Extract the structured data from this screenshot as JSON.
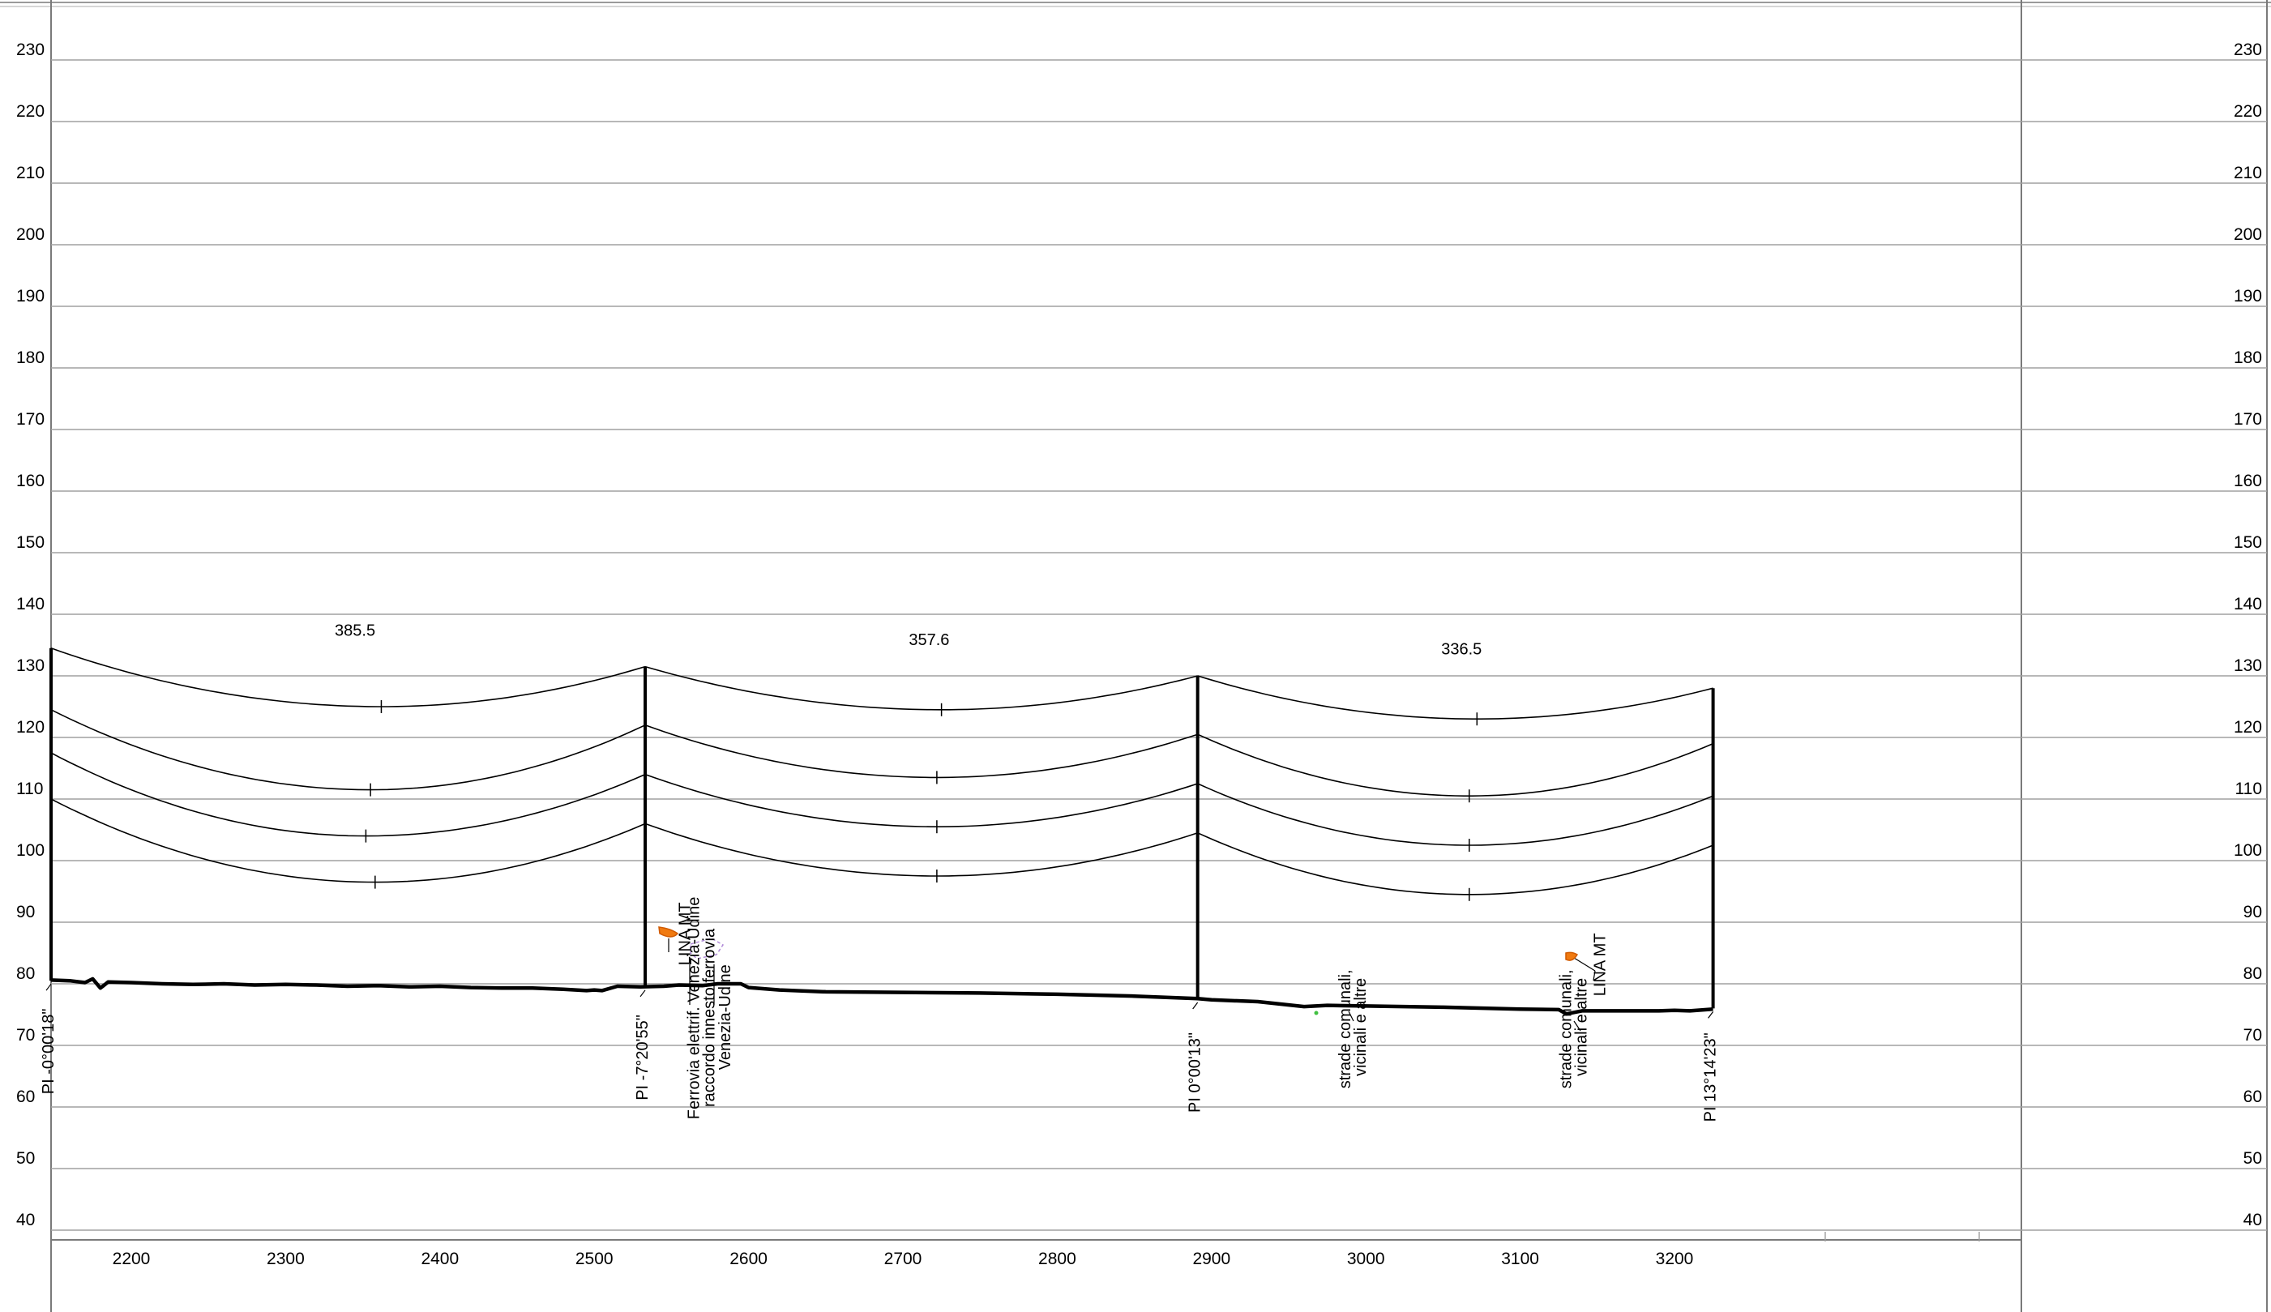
{
  "chart_data": {
    "type": "line",
    "title": "",
    "xlabel": "",
    "ylabel": "",
    "xlim": [
      2148,
      3225
    ],
    "ylim": [
      40,
      230
    ],
    "y_ticks": [
      40,
      50,
      60,
      70,
      80,
      90,
      100,
      110,
      120,
      130,
      140,
      150,
      160,
      170,
      180,
      190,
      200,
      210,
      220,
      230
    ],
    "x_ticks": [
      2200,
      2300,
      2400,
      2500,
      2600,
      2700,
      2800,
      2900,
      3000,
      3100,
      3200
    ],
    "grid": true,
    "supports": [
      {
        "x": 2148,
        "top": 134.5,
        "base": 80.5,
        "label": "PI -0°00'18\""
      },
      {
        "x": 2533,
        "top": 131.5,
        "base": 79.5,
        "label": "PI -7°20'55\""
      },
      {
        "x": 2891,
        "top": 130.0,
        "base": 77.5,
        "label": "PI 0°00'13\""
      },
      {
        "x": 3225,
        "top": 128.0,
        "base": 76.0,
        "label": "PI 13°14'23\""
      }
    ],
    "spans": [
      {
        "length_label": "385.5",
        "label_at": [
          2345,
          136.5
        ],
        "from": 2148,
        "to": 2533,
        "conductors": [
          {
            "y_start": 134.5,
            "y_end": 131.5,
            "y_min": 125.0,
            "x_min": 2362
          },
          {
            "y_start": 124.5,
            "y_end": 122.0,
            "y_min": 111.5,
            "x_min": 2355
          },
          {
            "y_start": 117.5,
            "y_end": 114.0,
            "y_min": 104.0,
            "x_min": 2352
          },
          {
            "y_start": 110.0,
            "y_end": 106.0,
            "y_min": 96.5,
            "x_min": 2358
          }
        ]
      },
      {
        "length_label": "357.6",
        "label_at": [
          2717,
          135.0
        ],
        "from": 2533,
        "to": 2891,
        "conductors": [
          {
            "y_start": 131.5,
            "y_end": 130.0,
            "y_min": 124.5,
            "x_min": 2725
          },
          {
            "y_start": 122.0,
            "y_end": 120.5,
            "y_min": 113.5,
            "x_min": 2722
          },
          {
            "y_start": 114.0,
            "y_end": 112.5,
            "y_min": 105.5,
            "x_min": 2722
          },
          {
            "y_start": 106.0,
            "y_end": 104.5,
            "y_min": 97.5,
            "x_min": 2722
          }
        ]
      },
      {
        "length_label": "336.5",
        "label_at": [
          3062,
          133.5
        ],
        "from": 2891,
        "to": 3225,
        "conductors": [
          {
            "y_start": 130.0,
            "y_end": 128.0,
            "y_min": 123.0,
            "x_min": 3072
          },
          {
            "y_start": 120.5,
            "y_end": 119.0,
            "y_min": 110.5,
            "x_min": 3067
          },
          {
            "y_start": 112.5,
            "y_end": 110.5,
            "y_min": 102.5,
            "x_min": 3067
          },
          {
            "y_start": 104.5,
            "y_end": 102.5,
            "y_min": 94.5,
            "x_min": 3067
          }
        ]
      }
    ],
    "ground_profile": [
      [
        2148,
        80.6
      ],
      [
        2160,
        80.5
      ],
      [
        2170,
        80.2
      ],
      [
        2175,
        80.8
      ],
      [
        2180,
        79.3
      ],
      [
        2185,
        80.3
      ],
      [
        2200,
        80.2
      ],
      [
        2220,
        80.0
      ],
      [
        2240,
        79.9
      ],
      [
        2260,
        80.0
      ],
      [
        2280,
        79.8
      ],
      [
        2300,
        79.9
      ],
      [
        2320,
        79.8
      ],
      [
        2340,
        79.6
      ],
      [
        2360,
        79.7
      ],
      [
        2380,
        79.5
      ],
      [
        2400,
        79.6
      ],
      [
        2420,
        79.4
      ],
      [
        2440,
        79.3
      ],
      [
        2460,
        79.3
      ],
      [
        2480,
        79.1
      ],
      [
        2495,
        78.9
      ],
      [
        2500,
        79.0
      ],
      [
        2505,
        78.9
      ],
      [
        2515,
        79.6
      ],
      [
        2530,
        79.5
      ],
      [
        2545,
        79.6
      ],
      [
        2555,
        79.8
      ],
      [
        2570,
        79.7
      ],
      [
        2580,
        80.0
      ],
      [
        2595,
        80.0
      ],
      [
        2600,
        79.4
      ],
      [
        2620,
        79.0
      ],
      [
        2650,
        78.7
      ],
      [
        2700,
        78.6
      ],
      [
        2750,
        78.5
      ],
      [
        2800,
        78.3
      ],
      [
        2850,
        78.0
      ],
      [
        2891,
        77.6
      ],
      [
        2900,
        77.4
      ],
      [
        2930,
        77.1
      ],
      [
        2960,
        76.3
      ],
      [
        2975,
        76.5
      ],
      [
        3000,
        76.4
      ],
      [
        3050,
        76.2
      ],
      [
        3100,
        75.9
      ],
      [
        3125,
        75.8
      ],
      [
        3130,
        75.1
      ],
      [
        3140,
        75.6
      ],
      [
        3160,
        75.6
      ],
      [
        3190,
        75.6
      ],
      [
        3200,
        75.7
      ],
      [
        3210,
        75.6
      ],
      [
        3225,
        75.9
      ]
    ],
    "annotations": [
      {
        "text": "LINA MT",
        "x": 2562,
        "y": 83
      },
      {
        "text": "Ferrovia elettrif. Venezia-Udine",
        "x": 2568,
        "y": 58
      },
      {
        "text": "raccordo innesto ferrovia",
        "x": 2578,
        "y": 60
      },
      {
        "text": "Venezia-Udine",
        "x": 2588,
        "y": 66
      },
      {
        "text": "strade comunali,",
        "x": 2990,
        "y": 63
      },
      {
        "text": "vicinali e altre",
        "x": 3000,
        "y": 65
      },
      {
        "text": "strade comunali,",
        "x": 3133,
        "y": 63
      },
      {
        "text": "vicinali e altre",
        "x": 3143,
        "y": 65
      },
      {
        "text": "LINA MT",
        "x": 3155,
        "y": 78
      }
    ],
    "colors": {
      "grid": "#a0a0a0",
      "line": "#000000",
      "marker": "#f07a10"
    }
  }
}
